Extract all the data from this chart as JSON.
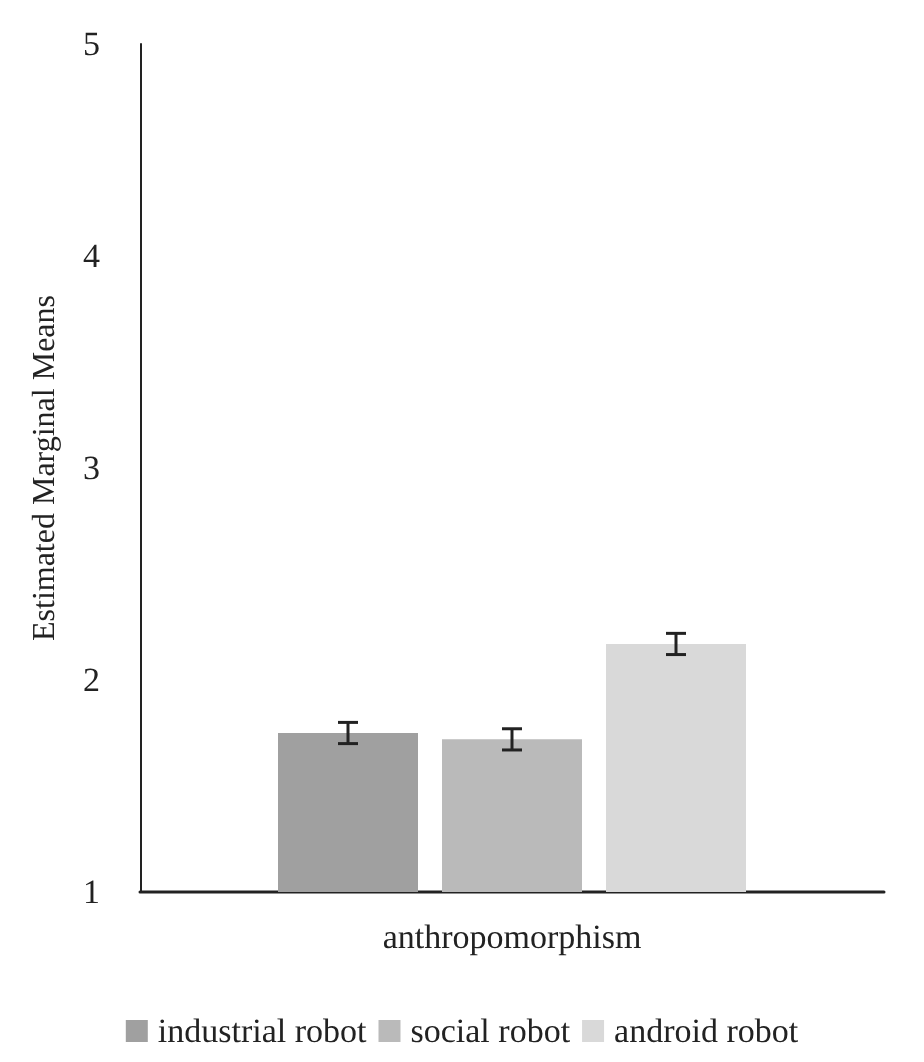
{
  "chart_data": {
    "type": "bar",
    "ylabel": "Estimated Marginal Means",
    "categories": [
      "anthropomorphism"
    ],
    "series": [
      {
        "name": "industrial robot",
        "color": "#a0a0a0",
        "values": [
          1.75
        ],
        "errors": [
          0.05
        ]
      },
      {
        "name": "social robot",
        "color": "#bababa",
        "values": [
          1.72
        ],
        "errors": [
          0.05
        ]
      },
      {
        "name": "android robot",
        "color": "#d9d9d9",
        "values": [
          2.17
        ],
        "errors": [
          0.05
        ]
      }
    ],
    "ylim": [
      1,
      5
    ],
    "yticks": [
      1,
      2,
      3,
      4,
      5
    ],
    "grid": false,
    "legend": "bottom"
  }
}
